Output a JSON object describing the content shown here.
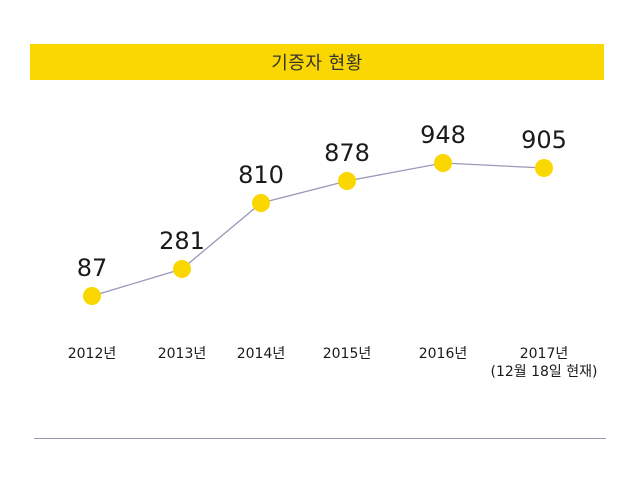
{
  "title": "기증자 현황",
  "colors": {
    "banner": "#fad700",
    "marker": "#fad700",
    "line": "#9a98b8",
    "text": "#1a1a1a"
  },
  "chart_data": {
    "type": "line",
    "title": "기증자 현황",
    "xlabel": "",
    "ylabel": "",
    "grid": false,
    "categories": [
      "2012년",
      "2013년",
      "2014년",
      "2015년",
      "2016년",
      "2017년"
    ],
    "category_notes": [
      "",
      "",
      "",
      "",
      "",
      "(12월 18일 현재)"
    ],
    "values": [
      87,
      281,
      810,
      878,
      948,
      905
    ],
    "ylim": [
      0,
      1000
    ]
  }
}
